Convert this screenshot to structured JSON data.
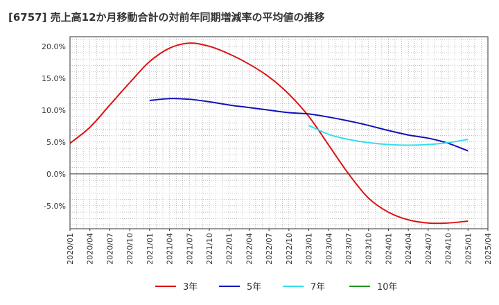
{
  "title": "[6757]  売上高12か月移動合計の対前年同期増減率の平均値の推移",
  "chart_data": {
    "type": "line",
    "title": "[6757]  売上高12か月移動合計の対前年同期増減率の平均値の推移",
    "xlabel": "",
    "ylabel": "",
    "ylim": [
      -8.6,
      21.5
    ],
    "yticks": [
      -5,
      0,
      5,
      10,
      15,
      20
    ],
    "ytick_labels": [
      "-5.0%",
      "0.0%",
      "5.0%",
      "10.0%",
      "15.0%",
      "20.0%"
    ],
    "x_start": "2020-01",
    "x_end": "2025-04",
    "xtick_labels": [
      "2020/01",
      "2020/04",
      "2020/07",
      "2020/10",
      "2021/01",
      "2021/04",
      "2021/07",
      "2021/10",
      "2022/01",
      "2022/04",
      "2022/07",
      "2022/10",
      "2023/01",
      "2023/04",
      "2023/07",
      "2023/10",
      "2024/01",
      "2024/04",
      "2024/07",
      "2024/10",
      "2025/01",
      "2025/04"
    ],
    "grid": true,
    "legend_position": "bottom",
    "series": [
      {
        "name": "3年",
        "color": "#dd1111",
        "points": [
          [
            "2020/01",
            4.8
          ],
          [
            "2020/04",
            7.3
          ],
          [
            "2020/07",
            10.8
          ],
          [
            "2020/10",
            14.3
          ],
          [
            "2021/01",
            17.6
          ],
          [
            "2021/04",
            19.7
          ],
          [
            "2021/07",
            20.5
          ],
          [
            "2021/10",
            20.0
          ],
          [
            "2022/01",
            18.8
          ],
          [
            "2022/04",
            17.2
          ],
          [
            "2022/07",
            15.2
          ],
          [
            "2022/10",
            12.5
          ],
          [
            "2023/01",
            9.0
          ],
          [
            "2023/04",
            4.5
          ],
          [
            "2023/07",
            0.0
          ],
          [
            "2023/10",
            -3.8
          ],
          [
            "2024/01",
            -6.0
          ],
          [
            "2024/04",
            -7.2
          ],
          [
            "2024/07",
            -7.7
          ],
          [
            "2024/10",
            -7.7
          ],
          [
            "2025/01",
            -7.4
          ]
        ]
      },
      {
        "name": "5年",
        "color": "#1111bb",
        "points": [
          [
            "2021/01",
            11.5
          ],
          [
            "2021/04",
            11.8
          ],
          [
            "2021/07",
            11.7
          ],
          [
            "2021/10",
            11.3
          ],
          [
            "2022/01",
            10.8
          ],
          [
            "2022/04",
            10.4
          ],
          [
            "2022/07",
            10.0
          ],
          [
            "2022/10",
            9.6
          ],
          [
            "2023/01",
            9.4
          ],
          [
            "2023/04",
            8.9
          ],
          [
            "2023/07",
            8.3
          ],
          [
            "2023/10",
            7.6
          ],
          [
            "2024/01",
            6.8
          ],
          [
            "2024/04",
            6.1
          ],
          [
            "2024/07",
            5.6
          ],
          [
            "2024/10",
            4.8
          ],
          [
            "2025/01",
            3.6
          ]
        ]
      },
      {
        "name": "7年",
        "color": "#33ddee",
        "points": [
          [
            "2023/01",
            7.6
          ],
          [
            "2023/04",
            6.2
          ],
          [
            "2023/07",
            5.4
          ],
          [
            "2023/10",
            4.9
          ],
          [
            "2024/01",
            4.6
          ],
          [
            "2024/04",
            4.5
          ],
          [
            "2024/07",
            4.6
          ],
          [
            "2024/10",
            4.9
          ],
          [
            "2025/01",
            5.4
          ]
        ]
      },
      {
        "name": "10年",
        "color": "#229922",
        "points": []
      }
    ]
  }
}
